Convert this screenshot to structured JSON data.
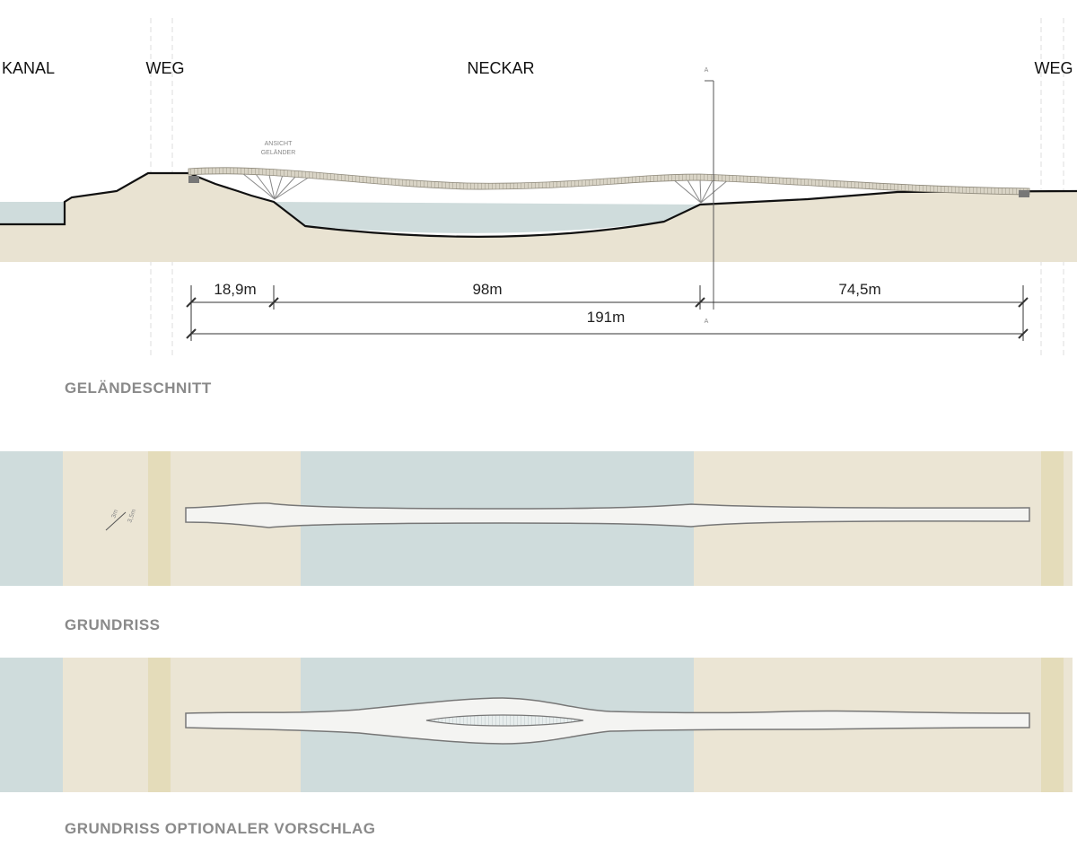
{
  "section": {
    "labels": {
      "kanal": "KANAL",
      "weg_left": "WEG",
      "neckar": "NECKAR",
      "weg_right": "WEG"
    },
    "annotation": [
      "ANSICHT",
      "GELÄNDER"
    ],
    "section_marker": "A",
    "dimensions": [
      "18,9m",
      "98m",
      "74,5m",
      "191m"
    ],
    "title": "GELÄNDESCHNITT"
  },
  "plan": {
    "deck_width": [
      "3m",
      "3,5m"
    ],
    "title": "GRUNDRISS"
  },
  "plan_option": {
    "title": "GRUNDRISS OPTIONALER VORSCHLAG"
  }
}
